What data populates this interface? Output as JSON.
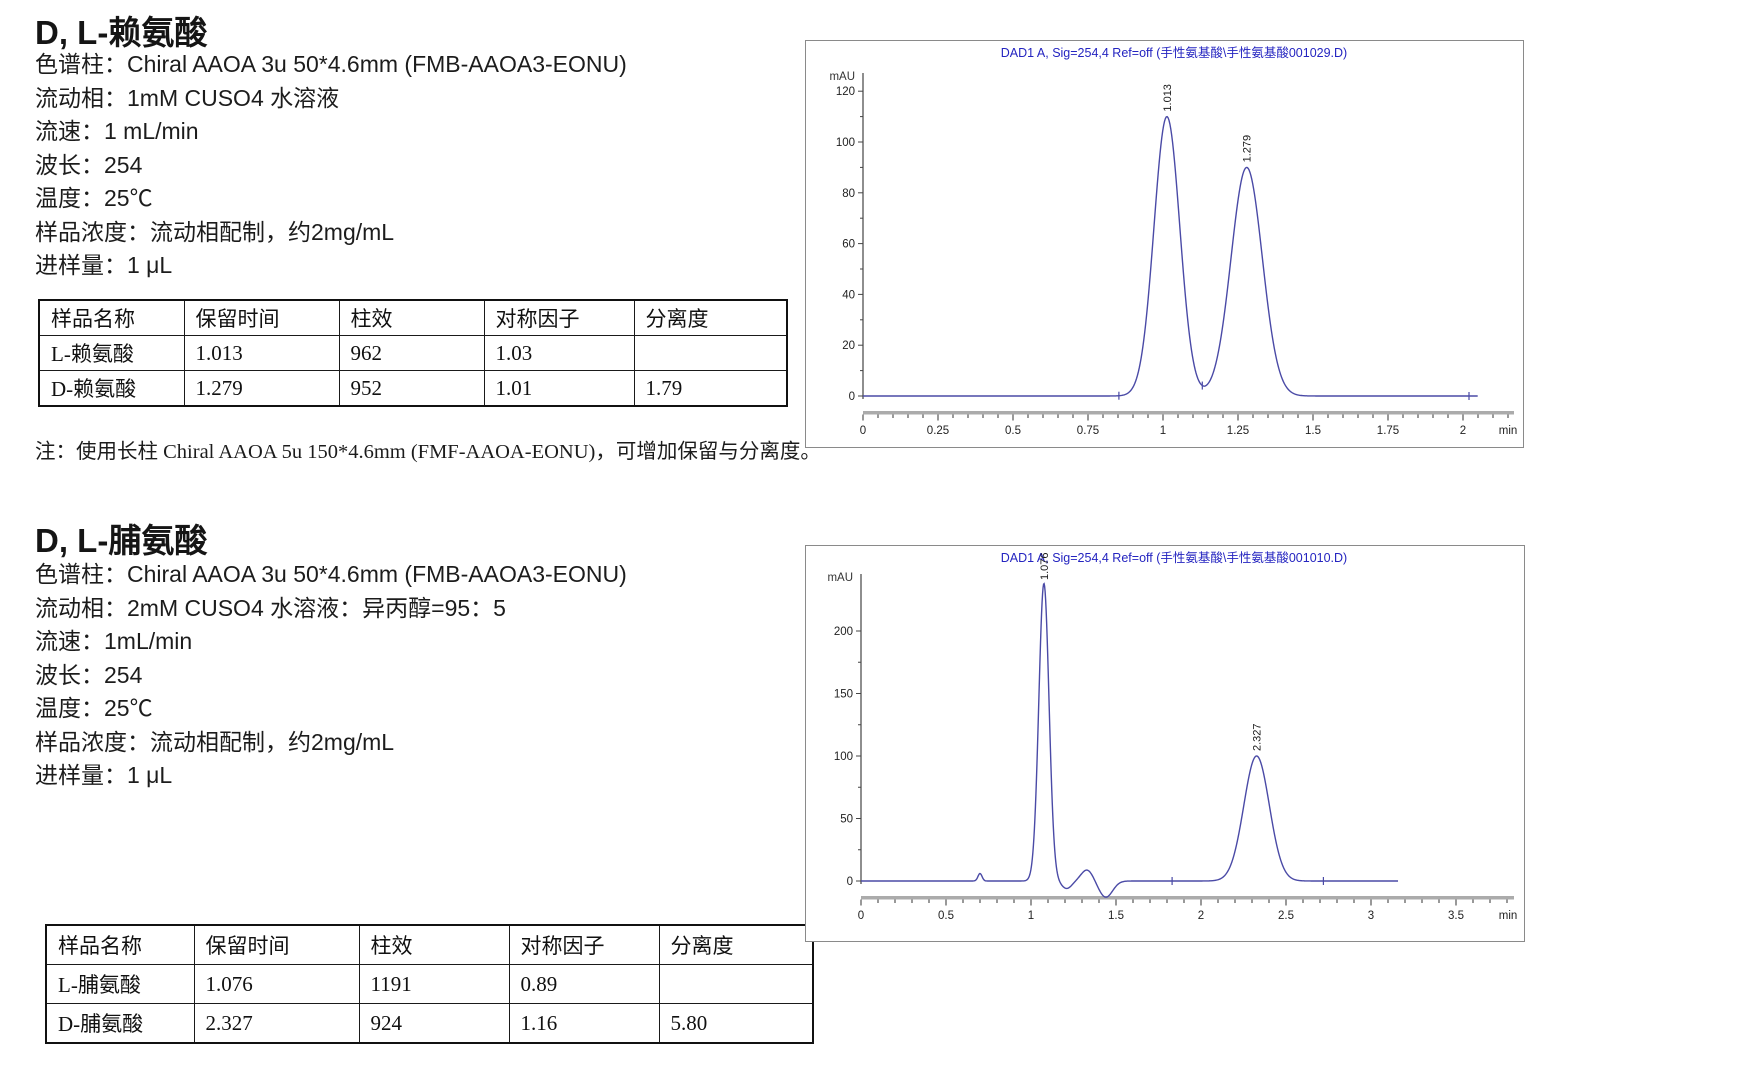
{
  "sections": [
    {
      "title": "D, L-赖氨酸",
      "conditions": [
        "色谱柱：Chiral AAOA 3u 50*4.6mm (FMB-AAOA3-EONU)",
        "流动相：1mM CUSO4 水溶液",
        "流速：1 mL/min",
        "波长：254",
        "温度：25℃",
        "样品浓度：流动相配制，约2mg/mL",
        "进样量：1 μL"
      ],
      "table": {
        "headers": [
          "样品名称",
          "保留时间",
          "柱效",
          "对称因子",
          "分离度"
        ],
        "rows": [
          [
            "L-赖氨酸",
            "1.013",
            "962",
            "1.03",
            ""
          ],
          [
            "D-赖氨酸",
            "1.279",
            "952",
            "1.01",
            "1.79"
          ]
        ]
      },
      "note": "注：使用长柱 Chiral AAOA 5u 150*4.6mm (FMF-AAOA-EONU)，可增加保留与分离度。"
    },
    {
      "title": "D, L-脯氨酸",
      "conditions": [
        "色谱柱：Chiral AAOA 3u 50*4.6mm (FMB-AAOA3-EONU)",
        "流动相：2mM CUSO4 水溶液：异丙醇=95：5",
        "流速：1mL/min",
        "波长：254",
        "温度：25℃",
        "样品浓度：流动相配制，约2mg/mL",
        "进样量：1 μL"
      ],
      "table": {
        "headers": [
          "样品名称",
          "保留时间",
          "柱效",
          "对称因子",
          "分离度"
        ],
        "rows": [
          [
            "L-脯氨酸",
            "1.076",
            "1191",
            "0.89",
            ""
          ],
          [
            "D-脯氨酸",
            "2.327",
            "924",
            "1.16",
            "5.80"
          ]
        ]
      }
    }
  ],
  "chart_data": [
    {
      "type": "line",
      "title": "DAD1 A, Sig=254,4 Ref=off (手性氨基酸\\手性氨基酸001029.D)",
      "ylabel": "mAU",
      "xlabel": "min",
      "xlim": [
        0,
        2.17
      ],
      "ylim": [
        -5,
        135
      ],
      "x_major": 0.25,
      "x_minor": 0.05,
      "x_label_max": 2,
      "y_major": 20,
      "y_minor": 10,
      "y_max": 120,
      "trace_end": 2.05,
      "peaks": [
        {
          "label": "1.013",
          "t": 1.013,
          "sigma": 0.043,
          "amp": 110
        },
        {
          "label": "1.279",
          "t": 1.279,
          "sigma": 0.052,
          "amp": 90
        }
      ],
      "features": [],
      "markers": [
        0.853,
        1.131,
        2.02
      ],
      "trace_color": "#4a4aa6",
      "title_color": "#2424c0"
    },
    {
      "type": "line",
      "title": "DAD1 A, Sig=254,4 Ref=off (手性氨基酸\\手性氨基酸001010.D)",
      "ylabel": "mAU",
      "xlabel": "min",
      "xlim": [
        0,
        3.84
      ],
      "ylim": [
        -25,
        265
      ],
      "x_major": 0.5,
      "x_minor": 0.1,
      "x_label_max": 3.5,
      "y_major": 50,
      "y_minor": 25,
      "y_max": 200,
      "trace_end": 3.16,
      "peaks": [
        {
          "label": "1.076",
          "t": 1.076,
          "sigma": 0.03,
          "amp": 238
        },
        {
          "label": "2.327",
          "t": 2.327,
          "sigma": 0.075,
          "amp": 100
        }
      ],
      "features": [
        {
          "t": 0.7,
          "sigma": 0.012,
          "amp": 6
        },
        {
          "t": 1.21,
          "sigma": 0.03,
          "amp": -6
        },
        {
          "t": 1.33,
          "sigma": 0.035,
          "amp": 9
        },
        {
          "t": 1.44,
          "sigma": 0.04,
          "amp": -13
        }
      ],
      "markers": [
        1.83,
        2.72
      ],
      "trace_color": "#4a4aa6",
      "title_color": "#2424c0"
    }
  ]
}
